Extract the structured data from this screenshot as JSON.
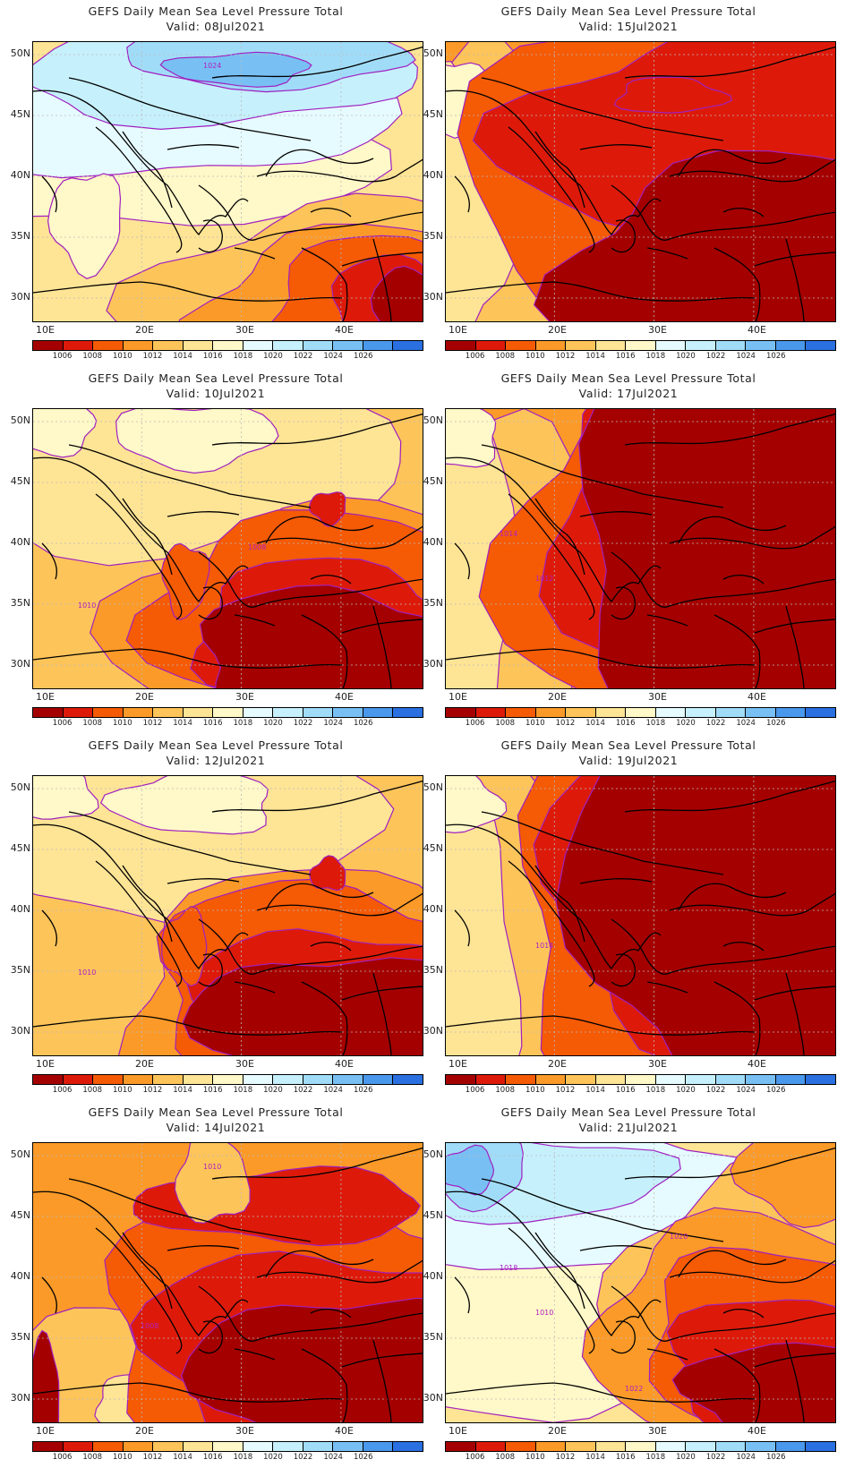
{
  "panels": [
    {
      "title": "GEFS Daily Mean Sea Level Pressure Total",
      "valid": "Valid: 08Jul2021",
      "scheme": "cool",
      "labels": [
        "1024"
      ]
    },
    {
      "title": "GEFS Daily Mean Sea Level Pressure Total",
      "valid": "Valid: 15Jul2021",
      "scheme": "hot1",
      "labels": []
    },
    {
      "title": "GEFS Daily Mean Sea Level Pressure Total",
      "valid": "Valid: 10Jul2021",
      "scheme": "hot2",
      "labels": [
        "1008",
        "1010"
      ]
    },
    {
      "title": "GEFS Daily Mean Sea Level Pressure Total",
      "valid": "Valid: 17Jul2021",
      "scheme": "hot3",
      "labels": [
        "1014",
        "1012"
      ]
    },
    {
      "title": "GEFS Daily Mean Sea Level Pressure Total",
      "valid": "Valid: 12Jul2021",
      "scheme": "hot2",
      "labels": [
        "1010"
      ]
    },
    {
      "title": "GEFS Daily Mean Sea Level Pressure Total",
      "valid": "Valid: 19Jul2021",
      "scheme": "hot3",
      "labels": [
        "1014"
      ]
    },
    {
      "title": "GEFS Daily Mean Sea Level Pressure Total",
      "valid": "Valid: 14Jul2021",
      "scheme": "hot4",
      "labels": [
        "1008",
        "1010"
      ]
    },
    {
      "title": "GEFS Daily Mean Sea Level Pressure Total",
      "valid": "Valid: 21Jul2021",
      "scheme": "cool2",
      "labels": [
        "1022",
        "1020",
        "1018",
        "1010"
      ]
    }
  ],
  "lat_labels": [
    "50N",
    "45N",
    "40N",
    "35N",
    "30N"
  ],
  "lon_labels": [
    "10E",
    "20E",
    "30E",
    "40E"
  ],
  "colorbar": {
    "colors": [
      "#a50000",
      "#dd1a0a",
      "#f55a05",
      "#fb9a28",
      "#fdc45a",
      "#fee495",
      "#fff8c8",
      "#e6fbff",
      "#c6f0fc",
      "#a0dcf8",
      "#78c0f4",
      "#4a98ec",
      "#2a70e0"
    ],
    "labels": [
      "1006",
      "1008",
      "1010",
      "1012",
      "1014",
      "1016",
      "1018",
      "1020",
      "1022",
      "1024",
      "1026"
    ]
  }
}
